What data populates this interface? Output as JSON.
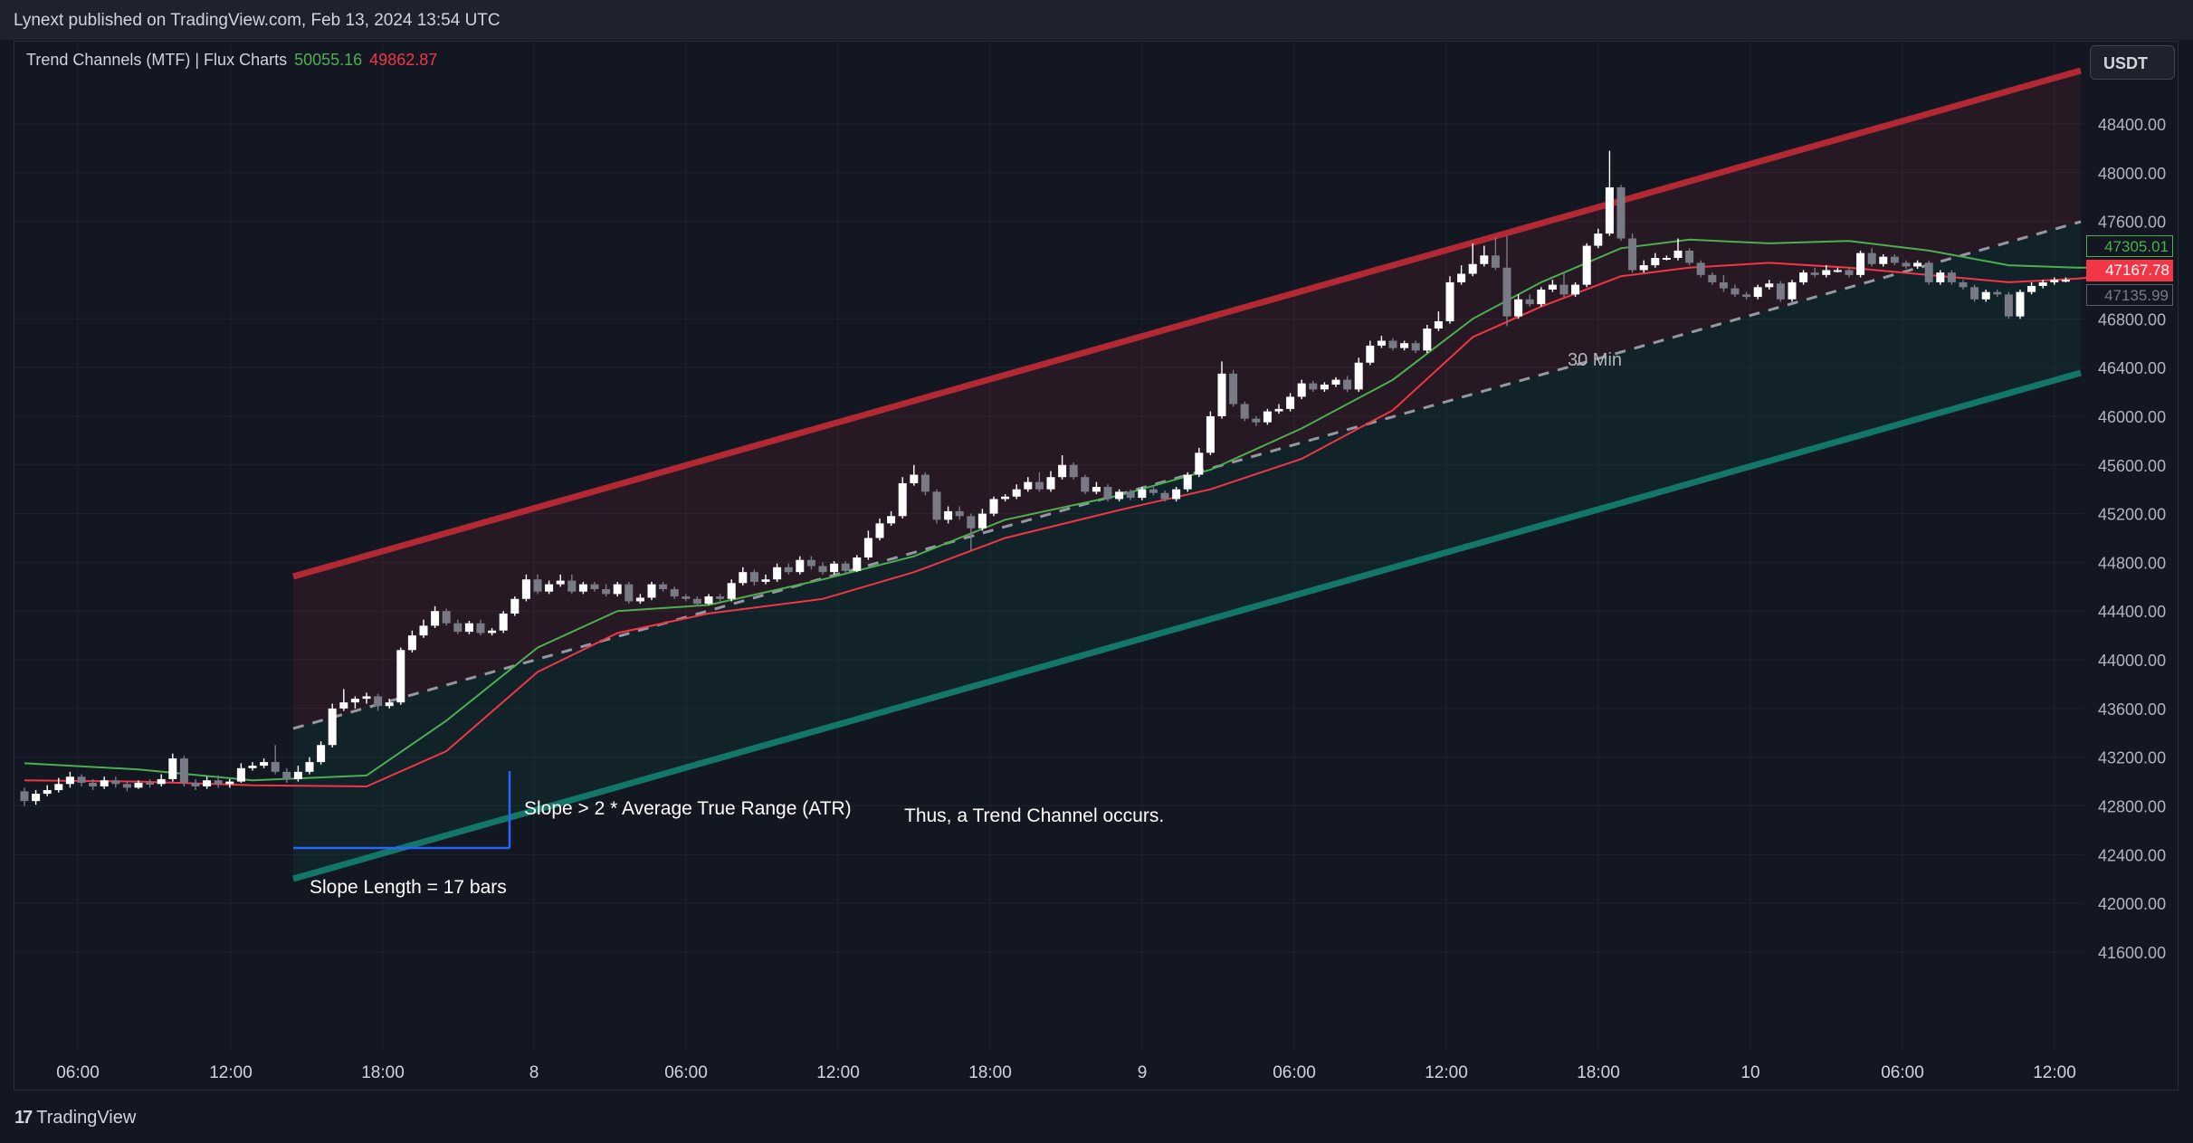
{
  "header": {
    "publisher": "Lynext published on TradingView.com, Feb 13, 2024 13:54 UTC"
  },
  "legend": {
    "indicator": "Trend Channels (MTF) | Flux Charts",
    "value_upper": "50055.16",
    "value_lower": "49862.87"
  },
  "price_axis": {
    "currency": "USDT",
    "labels": [
      "48400.00",
      "48000.00",
      "47600.00",
      "46800.00",
      "46400.00",
      "46000.00",
      "45600.00",
      "45200.00",
      "44800.00",
      "44400.00",
      "44000.00",
      "43600.00",
      "43200.00",
      "42800.00",
      "42400.00",
      "42000.00",
      "41600.00"
    ],
    "badge_green": "47305.01",
    "badge_red": "47167.78",
    "badge_gray": "47135.99"
  },
  "time_axis": {
    "labels": [
      "06:00",
      "12:00",
      "18:00",
      "8",
      "06:00",
      "12:00",
      "18:00",
      "9",
      "06:00",
      "12:00",
      "18:00",
      "10",
      "06:00",
      "12:00"
    ]
  },
  "annotations": {
    "slope": "Slope > 2 * Average True Range (ATR)",
    "conclusion": "Thus, a Trend Channel occurs.",
    "slope_length": "Slope Length = 17 bars",
    "timeframe": "30 Min"
  },
  "footer": {
    "brand": "TradingView",
    "logo_mark": "17"
  },
  "colors": {
    "bull": "#ffffff",
    "bear": "#787b86",
    "upper_band": "#b22833",
    "lower_band": "#127766",
    "fast_ma": "#4caf50",
    "slow_ma": "#f23645"
  },
  "chart_data": {
    "type": "candlestick",
    "y_axis": {
      "min": 41500,
      "max": 48800,
      "scale": "linear"
    },
    "x_axis": {
      "start": "Feb 7 02:00",
      "interval": "30 Min"
    },
    "bars": [
      [
        42920,
        42840,
        42950,
        42800
      ],
      [
        42840,
        42900,
        42930,
        42810
      ],
      [
        42900,
        42930,
        42970,
        42880
      ],
      [
        42930,
        42980,
        43030,
        42910
      ],
      [
        42980,
        43040,
        43080,
        42950
      ],
      [
        43040,
        42990,
        43060,
        42960
      ],
      [
        42990,
        42960,
        43020,
        42930
      ],
      [
        42960,
        43010,
        43040,
        42940
      ],
      [
        43010,
        42980,
        43040,
        42950
      ],
      [
        42980,
        42950,
        43000,
        42920
      ],
      [
        42950,
        42990,
        43010,
        42940
      ],
      [
        42990,
        42980,
        43020,
        42950
      ],
      [
        42980,
        43020,
        43060,
        42960
      ],
      [
        43020,
        43190,
        43230,
        43000
      ],
      [
        43190,
        42990,
        43210,
        42960
      ],
      [
        42990,
        42960,
        43020,
        42930
      ],
      [
        42960,
        43010,
        43040,
        42940
      ],
      [
        43010,
        42980,
        43050,
        42950
      ],
      [
        42980,
        43000,
        43020,
        42950
      ],
      [
        43000,
        43110,
        43150,
        42990
      ],
      [
        43110,
        43130,
        43160,
        43090
      ],
      [
        43130,
        43160,
        43190,
        43110
      ],
      [
        43160,
        43080,
        43300,
        43060
      ],
      [
        43080,
        43020,
        43110,
        42990
      ],
      [
        43020,
        43080,
        43130,
        43000
      ],
      [
        43080,
        43160,
        43200,
        43060
      ],
      [
        43160,
        43300,
        43330,
        43140
      ],
      [
        43300,
        43600,
        43640,
        43280
      ],
      [
        43600,
        43650,
        43760,
        43580
      ],
      [
        43650,
        43680,
        43700,
        43600
      ],
      [
        43680,
        43700,
        43730,
        43640
      ],
      [
        43700,
        43620,
        43720,
        43580
      ],
      [
        43620,
        43650,
        43680,
        43600
      ],
      [
        43650,
        44080,
        44100,
        43630
      ],
      [
        44080,
        44200,
        44240,
        44060
      ],
      [
        44200,
        44280,
        44330,
        44180
      ],
      [
        44280,
        44400,
        44440,
        44260
      ],
      [
        44400,
        44300,
        44420,
        44280
      ],
      [
        44300,
        44230,
        44330,
        44210
      ],
      [
        44230,
        44300,
        44320,
        44210
      ],
      [
        44300,
        44220,
        44330,
        44200
      ],
      [
        44220,
        44240,
        44260,
        44200
      ],
      [
        44240,
        44380,
        44400,
        44220
      ],
      [
        44380,
        44500,
        44520,
        44360
      ],
      [
        44500,
        44660,
        44700,
        44480
      ],
      [
        44660,
        44560,
        44700,
        44540
      ],
      [
        44560,
        44620,
        44650,
        44540
      ],
      [
        44620,
        44650,
        44700,
        44600
      ],
      [
        44650,
        44560,
        44700,
        44540
      ],
      [
        44560,
        44620,
        44640,
        44540
      ],
      [
        44620,
        44580,
        44640,
        44560
      ],
      [
        44580,
        44540,
        44620,
        44520
      ],
      [
        44540,
        44620,
        44640,
        44520
      ],
      [
        44620,
        44480,
        44640,
        44460
      ],
      [
        44480,
        44510,
        44540,
        44460
      ],
      [
        44510,
        44620,
        44640,
        44490
      ],
      [
        44620,
        44580,
        44640,
        44560
      ],
      [
        44580,
        44520,
        44600,
        44500
      ],
      [
        44520,
        44500,
        44540,
        44480
      ],
      [
        44500,
        44460,
        44520,
        44440
      ],
      [
        44460,
        44520,
        44540,
        44450
      ],
      [
        44520,
        44500,
        44540,
        44480
      ],
      [
        44500,
        44630,
        44660,
        44480
      ],
      [
        44630,
        44720,
        44760,
        44610
      ],
      [
        44720,
        44640,
        44740,
        44610
      ],
      [
        44640,
        44660,
        44700,
        44620
      ],
      [
        44660,
        44760,
        44790,
        44640
      ],
      [
        44760,
        44720,
        44790,
        44700
      ],
      [
        44720,
        44820,
        44850,
        44700
      ],
      [
        44820,
        44770,
        44850,
        44740
      ],
      [
        44770,
        44720,
        44800,
        44700
      ],
      [
        44720,
        44790,
        44810,
        44700
      ],
      [
        44790,
        44730,
        44810,
        44710
      ],
      [
        44730,
        44840,
        44860,
        44720
      ],
      [
        44840,
        45000,
        45060,
        44820
      ],
      [
        45000,
        45120,
        45160,
        44980
      ],
      [
        45120,
        45180,
        45220,
        45100
      ],
      [
        45180,
        45450,
        45500,
        45160
      ],
      [
        45450,
        45520,
        45600,
        45430
      ],
      [
        45520,
        45380,
        45540,
        45350
      ],
      [
        45380,
        45150,
        45400,
        45120
      ],
      [
        45150,
        45220,
        45260,
        45120
      ],
      [
        45220,
        45180,
        45260,
        45150
      ],
      [
        45180,
        45080,
        45200,
        44900
      ],
      [
        45080,
        45200,
        45240,
        45060
      ],
      [
        45200,
        45320,
        45340,
        45180
      ],
      [
        45320,
        45340,
        45360,
        45300
      ],
      [
        45340,
        45400,
        45440,
        45320
      ],
      [
        45400,
        45460,
        45500,
        45380
      ],
      [
        45460,
        45400,
        45540,
        45380
      ],
      [
        45400,
        45500,
        45550,
        45380
      ],
      [
        45500,
        45600,
        45680,
        45480
      ],
      [
        45600,
        45500,
        45620,
        45480
      ],
      [
        45500,
        45380,
        45520,
        45360
      ],
      [
        45380,
        45420,
        45460,
        45360
      ],
      [
        45420,
        45320,
        45440,
        45300
      ],
      [
        45320,
        45380,
        45400,
        45300
      ],
      [
        45380,
        45330,
        45400,
        45310
      ],
      [
        45330,
        45400,
        45420,
        45310
      ],
      [
        45400,
        45370,
        45420,
        45350
      ],
      [
        45370,
        45320,
        45390,
        45300
      ],
      [
        45320,
        45400,
        45420,
        45300
      ],
      [
        45400,
        45520,
        45540,
        45380
      ],
      [
        45520,
        45700,
        45740,
        45500
      ],
      [
        45700,
        46000,
        46040,
        45680
      ],
      [
        46000,
        46350,
        46450,
        45980
      ],
      [
        46350,
        46100,
        46380,
        46080
      ],
      [
        46100,
        45980,
        46120,
        45960
      ],
      [
        45980,
        45950,
        46000,
        45920
      ],
      [
        45950,
        46040,
        46060,
        45930
      ],
      [
        46040,
        46060,
        46100,
        46020
      ],
      [
        46060,
        46160,
        46190,
        46040
      ],
      [
        46160,
        46270,
        46300,
        46140
      ],
      [
        46270,
        46220,
        46290,
        46200
      ],
      [
        46220,
        46260,
        46280,
        46200
      ],
      [
        46260,
        46300,
        46320,
        46240
      ],
      [
        46300,
        46220,
        46330,
        46200
      ],
      [
        46220,
        46440,
        46480,
        46200
      ],
      [
        46440,
        46580,
        46620,
        46420
      ],
      [
        46580,
        46620,
        46660,
        46560
      ],
      [
        46620,
        46560,
        46640,
        46540
      ],
      [
        46560,
        46600,
        46620,
        46540
      ],
      [
        46600,
        46540,
        46620,
        46520
      ],
      [
        46540,
        46720,
        46750,
        46520
      ],
      [
        46720,
        46780,
        46860,
        46700
      ],
      [
        46780,
        47100,
        47150,
        46760
      ],
      [
        47100,
        47170,
        47240,
        47080
      ],
      [
        47170,
        47250,
        47420,
        47150
      ],
      [
        47250,
        47320,
        47400,
        47230
      ],
      [
        47320,
        47220,
        47470,
        47200
      ],
      [
        47220,
        46820,
        47480,
        46740
      ],
      [
        46820,
        46960,
        47000,
        46800
      ],
      [
        46960,
        46920,
        47000,
        46900
      ],
      [
        46920,
        47040,
        47060,
        46900
      ],
      [
        47040,
        47080,
        47120,
        47020
      ],
      [
        47080,
        47000,
        47180,
        46980
      ],
      [
        47000,
        47080,
        47100,
        46980
      ],
      [
        47080,
        47400,
        47420,
        47060
      ],
      [
        47400,
        47500,
        47540,
        47380
      ],
      [
        47500,
        47880,
        48180,
        47480
      ],
      [
        47880,
        47460,
        47900,
        47440
      ],
      [
        47460,
        47200,
        47500,
        47180
      ],
      [
        47200,
        47240,
        47280,
        47180
      ],
      [
        47240,
        47300,
        47340,
        47220
      ],
      [
        47300,
        47300,
        47320,
        47280
      ],
      [
        47300,
        47360,
        47460,
        47280
      ],
      [
        47360,
        47260,
        47380,
        47240
      ],
      [
        47260,
        47160,
        47280,
        47140
      ],
      [
        47160,
        47100,
        47180,
        47080
      ],
      [
        47100,
        47050,
        47160,
        47020
      ],
      [
        47050,
        47000,
        47080,
        46980
      ],
      [
        47000,
        46980,
        47020,
        46960
      ],
      [
        46980,
        47060,
        47080,
        46960
      ],
      [
        47060,
        47090,
        47120,
        47040
      ],
      [
        47090,
        46960,
        47110,
        46940
      ],
      [
        46960,
        47100,
        47120,
        46940
      ],
      [
        47100,
        47180,
        47200,
        47080
      ],
      [
        47180,
        47160,
        47220,
        47140
      ],
      [
        47160,
        47200,
        47240,
        47140
      ],
      [
        47200,
        47200,
        47220,
        47180
      ],
      [
        47200,
        47160,
        47220,
        47140
      ],
      [
        47160,
        47340,
        47360,
        47140
      ],
      [
        47340,
        47250,
        47380,
        47230
      ],
      [
        47250,
        47310,
        47330,
        47230
      ],
      [
        47310,
        47260,
        47330,
        47240
      ],
      [
        47260,
        47230,
        47280,
        47210
      ],
      [
        47230,
        47260,
        47280,
        47210
      ],
      [
        47260,
        47100,
        47280,
        47080
      ],
      [
        47100,
        47180,
        47200,
        47080
      ],
      [
        47180,
        47100,
        47200,
        47080
      ],
      [
        47100,
        47060,
        47120,
        47040
      ],
      [
        47060,
        46960,
        47080,
        46940
      ],
      [
        46960,
        47020,
        47040,
        46940
      ],
      [
        47020,
        47000,
        47040,
        46980
      ],
      [
        47000,
        46820,
        47020,
        46800
      ],
      [
        46820,
        47020,
        47040,
        46800
      ],
      [
        47020,
        47070,
        47100,
        47000
      ],
      [
        47070,
        47100,
        47120,
        47050
      ],
      [
        47100,
        47120,
        47140,
        47080
      ],
      [
        47120,
        47120,
        47140,
        47100
      ]
    ],
    "fast_ma": [
      [
        0,
        43150
      ],
      [
        10,
        43100
      ],
      [
        20,
        43010
      ],
      [
        30,
        43050
      ],
      [
        37,
        43500
      ],
      [
        45,
        44100
      ],
      [
        52,
        44400
      ],
      [
        60,
        44450
      ],
      [
        70,
        44660
      ],
      [
        78,
        44850
      ],
      [
        86,
        45150
      ],
      [
        96,
        45350
      ],
      [
        104,
        45560
      ],
      [
        112,
        45900
      ],
      [
        120,
        46300
      ],
      [
        127,
        46800
      ],
      [
        133,
        47100
      ],
      [
        140,
        47380
      ],
      [
        146,
        47450
      ],
      [
        153,
        47420
      ],
      [
        160,
        47440
      ],
      [
        167,
        47360
      ],
      [
        174,
        47240
      ],
      [
        180,
        47220
      ],
      [
        185,
        47220
      ]
    ],
    "slow_ma": [
      [
        0,
        43010
      ],
      [
        10,
        43000
      ],
      [
        20,
        42970
      ],
      [
        30,
        42960
      ],
      [
        37,
        43250
      ],
      [
        45,
        43900
      ],
      [
        52,
        44220
      ],
      [
        60,
        44380
      ],
      [
        70,
        44500
      ],
      [
        78,
        44720
      ],
      [
        86,
        45000
      ],
      [
        96,
        45230
      ],
      [
        104,
        45400
      ],
      [
        112,
        45650
      ],
      [
        120,
        46050
      ],
      [
        127,
        46650
      ],
      [
        133,
        46900
      ],
      [
        140,
        47150
      ],
      [
        146,
        47220
      ],
      [
        153,
        47260
      ],
      [
        160,
        47220
      ],
      [
        167,
        47160
      ],
      [
        174,
        47100
      ],
      [
        180,
        47130
      ],
      [
        185,
        47170
      ]
    ]
  }
}
